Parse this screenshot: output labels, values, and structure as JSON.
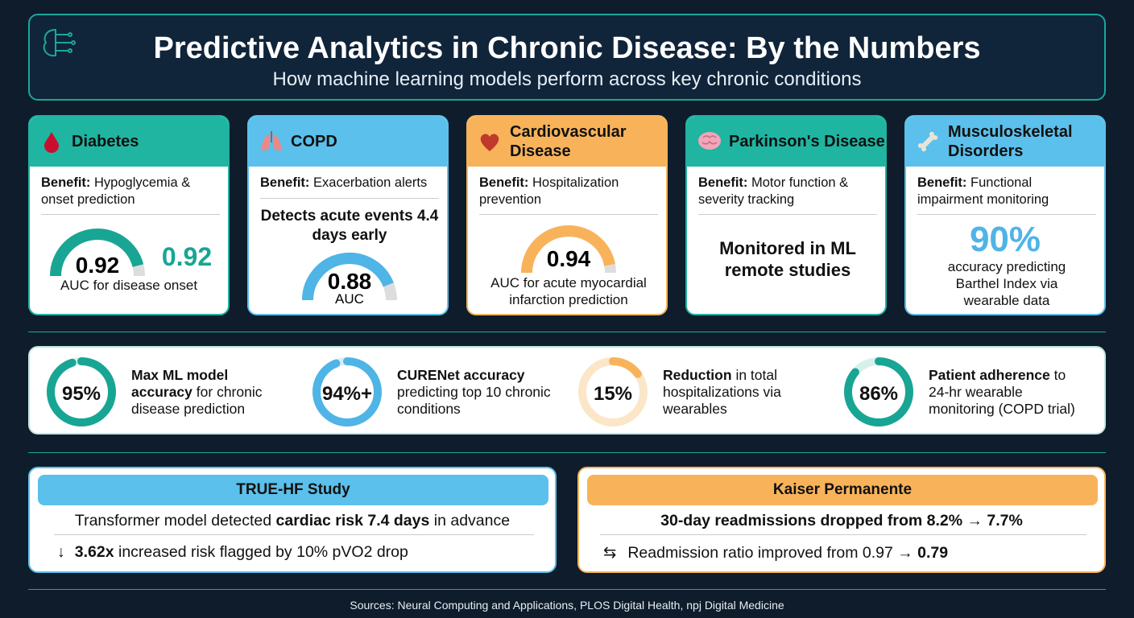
{
  "header": {
    "title": "Predictive Analytics in Chronic Disease: By the Numbers",
    "subtitle": "How machine learning models perform across key chronic conditions"
  },
  "cards": [
    {
      "name": "Diabetes",
      "benefit_label": "Benefit:",
      "benefit": "Hypoglycemia & onset prediction",
      "gauge": {
        "value": 0.92,
        "caption": "AUC for disease onset"
      }
    },
    {
      "name": "COPD",
      "benefit_label": "Benefit:",
      "benefit": "Exacerbation alerts",
      "highlight": "Detects acute events 4.4 days early",
      "gauge": {
        "value": 0.88,
        "caption": "AUC"
      }
    },
    {
      "name": "Cardiovascular Disease",
      "benefit_label": "Benefit:",
      "benefit": "Hospitalization prevention",
      "gauge": {
        "value": 0.94,
        "caption": "AUC for acute myocardial infarction prediction"
      }
    },
    {
      "name": "Parkinson's Disease",
      "benefit_label": "Benefit:",
      "benefit": "Motor function & severity tracking",
      "highlight": "Monitored in ML remote studies"
    },
    {
      "name": "Musculoskeletal Disorders",
      "benefit_label": "Benefit:",
      "benefit": "Functional impairment monitoring",
      "stat": "90%",
      "caption": "accuracy predicting Barthel Index via wearable data"
    }
  ],
  "stats": [
    {
      "value": 95,
      "label": "95%",
      "bold": "Max ML model accuracy",
      "text": "for chronic disease prediction"
    },
    {
      "value": 94,
      "label": "94%+",
      "bold": "CURENet accuracy",
      "text": "predicting top 10 chronic conditions"
    },
    {
      "value": 15,
      "label": "15%",
      "bold": "Reduction",
      "text": "in total hospitalizations via wearables"
    },
    {
      "value": 86,
      "label": "86%",
      "bold": "Patient adherence",
      "text": "to 24-hr wearable monitoring (COPD trial)"
    }
  ],
  "studies": [
    {
      "title": "TRUE-HF Study",
      "line1": [
        "Transformer model detected",
        "cardiac risk 7.4 days",
        "in advance"
      ],
      "line2": [
        "3.62x",
        "increased risk flagged by 10% pVO2 drop"
      ]
    },
    {
      "title": "Kaiser Permanente",
      "line1": [
        "30-day readmissions dropped from 8.2% → 7.7%"
      ],
      "line2": [
        "Readmission ratio improved from 0.97 →",
        "0.79"
      ]
    }
  ],
  "sources": "Sources: Neural Computing and Applications, PLOS Digital Health, npj Digital Medicine"
}
